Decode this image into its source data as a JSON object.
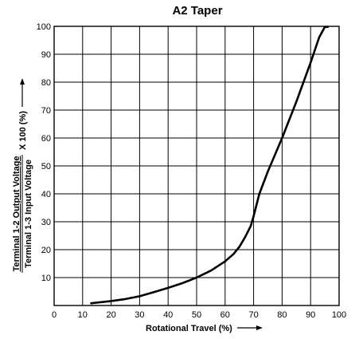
{
  "chart_data": {
    "type": "line",
    "title": "A2 Taper",
    "xlabel": "Rotational Travel (%)",
    "ylabel": {
      "numerator": "Terminal 1-2 Output Voltage",
      "denominator": "Terminal 1-3 Input Voltage",
      "suffix": "X 100 (%)"
    },
    "xlim": [
      0,
      100
    ],
    "ylim": [
      0,
      100
    ],
    "x_ticks": [
      "0",
      "10",
      "20",
      "30",
      "40",
      "50",
      "60",
      "70",
      "80",
      "90",
      "100"
    ],
    "y_ticks": [
      "10",
      "20",
      "30",
      "40",
      "50",
      "60",
      "70",
      "80",
      "90",
      "100"
    ],
    "grid": true,
    "series": [
      {
        "x": [
          13,
          20,
          25,
          30,
          35,
          40,
          45,
          50,
          55,
          60,
          63,
          65,
          67,
          69,
          70,
          72,
          75,
          80,
          85,
          90,
          93,
          95,
          96
        ],
        "y": [
          0.8,
          1.6,
          2.3,
          3.3,
          4.8,
          6.3,
          8.0,
          10.0,
          12.5,
          15.8,
          18.5,
          21.0,
          24.5,
          28.5,
          32.0,
          40.0,
          48.0,
          60.0,
          73.0,
          87.0,
          96.0,
          99.8,
          99.8
        ]
      }
    ]
  }
}
